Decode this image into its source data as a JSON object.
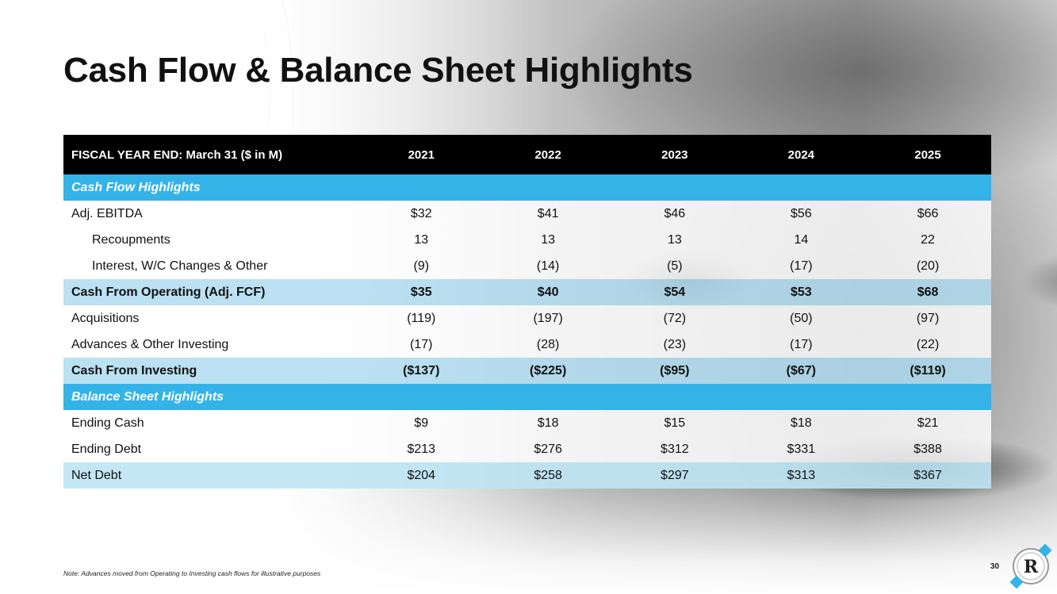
{
  "title": "Cash Flow & Balance Sheet Highlights",
  "table": {
    "header_label": "FISCAL YEAR END: March 31 ($ in M)",
    "years": [
      "2021",
      "2022",
      "2023",
      "2024",
      "2025"
    ],
    "rows": [
      {
        "type": "section",
        "label": "Cash Flow Highlights",
        "values": []
      },
      {
        "type": "row",
        "label": "Adj. EBITDA",
        "values": [
          "$32",
          "$41",
          "$46",
          "$56",
          "$66"
        ]
      },
      {
        "type": "indent",
        "label": "Recoupments",
        "values": [
          "13",
          "13",
          "13",
          "14",
          "22"
        ]
      },
      {
        "type": "indent",
        "label": "Interest, W/C Changes & Other",
        "values": [
          "(9)",
          "(14)",
          "(5)",
          "(17)",
          "(20)"
        ]
      },
      {
        "type": "total",
        "label": "Cash From Operating (Adj. FCF)",
        "values": [
          "$35",
          "$40",
          "$54",
          "$53",
          "$68"
        ]
      },
      {
        "type": "row",
        "label": "Acquisitions",
        "values": [
          "(119)",
          "(197)",
          "(72)",
          "(50)",
          "(97)"
        ]
      },
      {
        "type": "row",
        "label": "Advances & Other Investing",
        "values": [
          "(17)",
          "(28)",
          "(23)",
          "(17)",
          "(22)"
        ]
      },
      {
        "type": "total",
        "label": "Cash From Investing",
        "values": [
          "($137)",
          "($225)",
          "($95)",
          "($67)",
          "($119)"
        ]
      },
      {
        "type": "section",
        "label": "Balance Sheet Highlights",
        "values": []
      },
      {
        "type": "row",
        "label": "Ending Cash",
        "values": [
          "$9",
          "$18",
          "$15",
          "$18",
          "$21"
        ]
      },
      {
        "type": "row",
        "label": "Ending Debt",
        "values": [
          "$213",
          "$276",
          "$312",
          "$331",
          "$388"
        ]
      },
      {
        "type": "net",
        "label": "Net Debt",
        "values": [
          "$204",
          "$258",
          "$297",
          "$313",
          "$367"
        ]
      }
    ]
  },
  "footnote": "Note: Advances moved from Operating to Investing cash flows for illustrative purposes",
  "page_number": "30",
  "logo": {
    "letter": "R",
    "icon": "company-logo-icon"
  },
  "colors": {
    "accent_blue": "#33b3e8",
    "header_black": "#000000",
    "total_row": "#afdcf0"
  }
}
